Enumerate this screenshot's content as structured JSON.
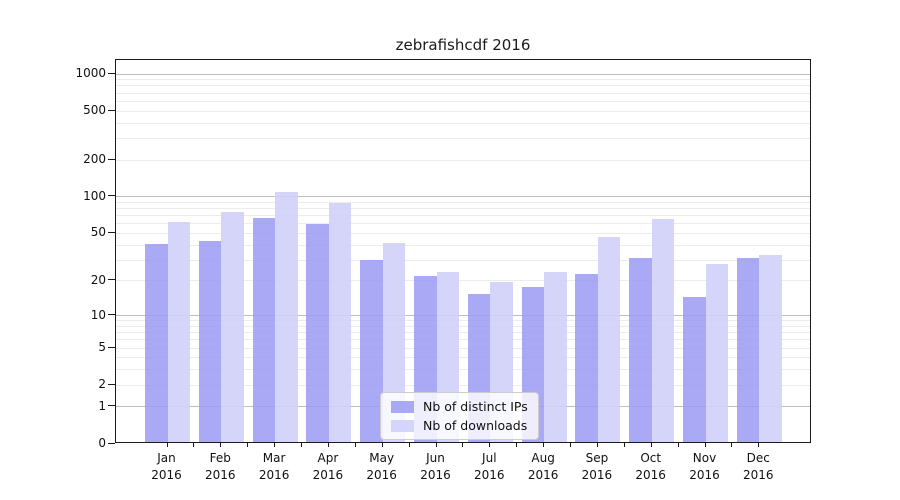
{
  "title": "zebrafishcdf 2016",
  "chart_data": {
    "type": "bar",
    "title": "zebrafishcdf 2016",
    "x_categories": [
      {
        "month": "Jan",
        "year": "2016"
      },
      {
        "month": "Feb",
        "year": "2016"
      },
      {
        "month": "Mar",
        "year": "2016"
      },
      {
        "month": "Apr",
        "year": "2016"
      },
      {
        "month": "May",
        "year": "2016"
      },
      {
        "month": "Jun",
        "year": "2016"
      },
      {
        "month": "Jul",
        "year": "2016"
      },
      {
        "month": "Aug",
        "year": "2016"
      },
      {
        "month": "Sep",
        "year": "2016"
      },
      {
        "month": "Oct",
        "year": "2016"
      },
      {
        "month": "Nov",
        "year": "2016"
      },
      {
        "month": "Dec",
        "year": "2016"
      }
    ],
    "series": [
      {
        "name": "Nb of distinct IPs",
        "color": "rgba(154,154,245,0.85)",
        "values": [
          39,
          42,
          65,
          58,
          29,
          21,
          15,
          17,
          22,
          30,
          14,
          30
        ]
      },
      {
        "name": "Nb of downloads",
        "color": "rgba(208,208,250,0.9)",
        "values": [
          60,
          72,
          105,
          85,
          40,
          23,
          19,
          23,
          45,
          63,
          27,
          32
        ]
      }
    ],
    "yscale": "log(1+x)",
    "ylim": [
      0,
      1300
    ],
    "yticks": [
      1000,
      500,
      200,
      100,
      50,
      20,
      10,
      5,
      2,
      1,
      0
    ],
    "grid": true,
    "legend_position": "lower center",
    "colors": {
      "axis": "#1a1a1a",
      "grid_major": "#bdbdbd",
      "grid_minor": "#ececec",
      "text": "#111111",
      "background": "#ffffff"
    }
  }
}
